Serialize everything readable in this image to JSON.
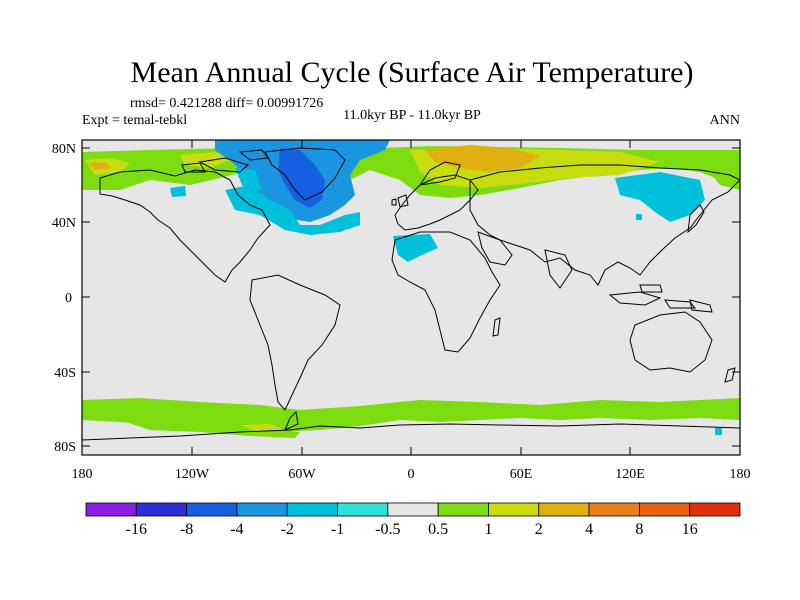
{
  "title": "Mean Annual Cycle (Surface Air Temperature)",
  "stats": "rmsd= 0.421288 diff= 0.00991726",
  "experiment": "Expt = temal-tebkl",
  "period": "11.0kyr BP - 11.0kyr BP",
  "season": "ANN",
  "lat_labels": [
    "80N",
    "40N",
    "0",
    "40S",
    "80S"
  ],
  "lon_labels": [
    "180",
    "120W",
    "60W",
    "0",
    "60E",
    "120E",
    "180"
  ],
  "colorbar": {
    "labels": [
      "-16",
      "-8",
      "-4",
      "-2",
      "-1",
      "-0.5",
      "0.5",
      "1",
      "2",
      "4",
      "8",
      "16"
    ],
    "colors": [
      "#8b1fe8",
      "#2c2ed8",
      "#1560e0",
      "#1a96e0",
      "#00c0dc",
      "#2ee0d8",
      "#e6e6e6",
      "#7ddc10",
      "#c8dc10",
      "#e0b010",
      "#e88018",
      "#e86010",
      "#e03010"
    ]
  },
  "background_color": "#e6e6e6"
}
